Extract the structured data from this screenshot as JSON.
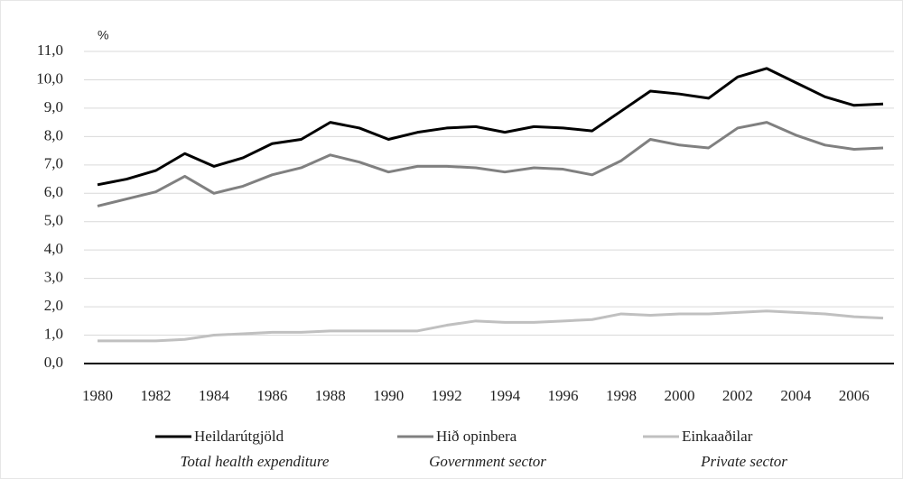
{
  "chart_data": {
    "type": "line",
    "y_unit": "%",
    "x": [
      1980,
      1981,
      1982,
      1983,
      1984,
      1985,
      1986,
      1987,
      1988,
      1989,
      1990,
      1991,
      1992,
      1993,
      1994,
      1995,
      1996,
      1997,
      1998,
      1999,
      2000,
      2001,
      2002,
      2003,
      2004,
      2005,
      2006,
      2007
    ],
    "xlim": [
      1980,
      2007
    ],
    "xticks": [
      1980,
      1982,
      1984,
      1986,
      1988,
      1990,
      1992,
      1994,
      1996,
      1998,
      2000,
      2002,
      2004,
      2006
    ],
    "ylim": [
      0,
      11
    ],
    "yticks": [
      {
        "value": 0,
        "label": "0,0"
      },
      {
        "value": 1,
        "label": "1,0"
      },
      {
        "value": 2,
        "label": "2,0"
      },
      {
        "value": 3,
        "label": "3,0"
      },
      {
        "value": 4,
        "label": "4,0"
      },
      {
        "value": 5,
        "label": "5,0"
      },
      {
        "value": 6,
        "label": "6,0"
      },
      {
        "value": 7,
        "label": "7,0"
      },
      {
        "value": 8,
        "label": "8,0"
      },
      {
        "value": 9,
        "label": "9,0"
      },
      {
        "value": 10,
        "label": "10,0"
      },
      {
        "value": 11,
        "label": "11,0"
      }
    ],
    "grid": true,
    "series": [
      {
        "name": "Heildarútgjöld",
        "name_en": "Total health expenditure",
        "color": "#000000",
        "values": [
          6.3,
          6.5,
          6.8,
          7.4,
          6.95,
          7.25,
          7.75,
          7.9,
          8.5,
          8.3,
          7.9,
          8.15,
          8.3,
          8.35,
          8.15,
          8.35,
          8.3,
          8.2,
          8.9,
          9.6,
          9.5,
          9.35,
          10.1,
          10.4,
          9.9,
          9.4,
          9.1,
          9.15
        ]
      },
      {
        "name": "Hið opinbera",
        "name_en": "Government sector",
        "color": "#808080",
        "values": [
          5.55,
          5.8,
          6.05,
          6.6,
          6.0,
          6.25,
          6.65,
          6.9,
          7.35,
          7.1,
          6.75,
          6.95,
          6.95,
          6.9,
          6.75,
          6.9,
          6.85,
          6.65,
          7.15,
          7.9,
          7.7,
          7.6,
          8.3,
          8.5,
          8.05,
          7.7,
          7.55,
          7.6
        ]
      },
      {
        "name": "Einkaaðilar",
        "name_en": "Private sector",
        "color": "#c0c0c0",
        "values": [
          0.8,
          0.8,
          0.8,
          0.85,
          1.0,
          1.05,
          1.1,
          1.1,
          1.15,
          1.15,
          1.15,
          1.15,
          1.35,
          1.5,
          1.45,
          1.45,
          1.5,
          1.55,
          1.75,
          1.7,
          1.75,
          1.75,
          1.8,
          1.85,
          1.8,
          1.75,
          1.65,
          1.6
        ]
      }
    ]
  }
}
